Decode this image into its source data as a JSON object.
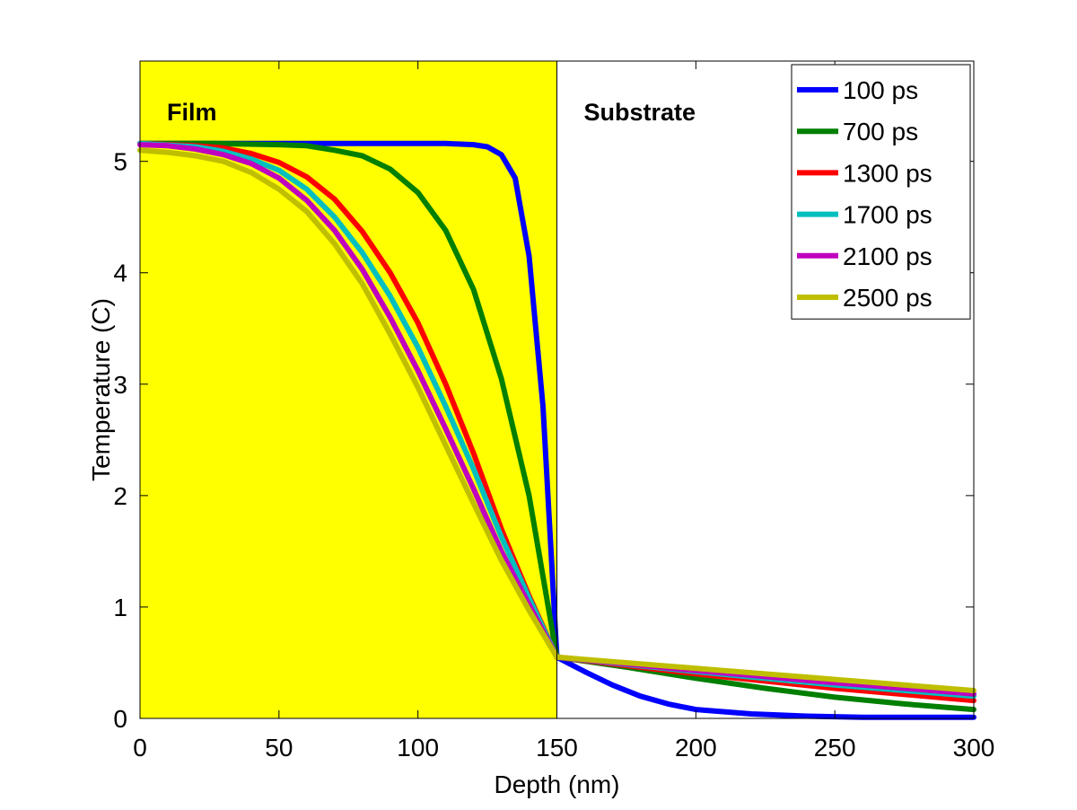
{
  "chart_data": {
    "type": "line",
    "title": "",
    "xlabel": "Depth (nm)",
    "ylabel": "Temperature (C)",
    "xlim": [
      0,
      300
    ],
    "ylim": [
      0,
      5.9
    ],
    "xticks": [
      0,
      50,
      100,
      150,
      200,
      250,
      300
    ],
    "yticks": [
      0,
      1,
      2,
      3,
      4,
      5
    ],
    "grid": false,
    "legend_position": "top-right",
    "regions": [
      {
        "label": "Film",
        "x_range": [
          0,
          150
        ],
        "color": "#ffff00"
      },
      {
        "label": "Substrate",
        "x_range": [
          150,
          300
        ],
        "color": "#ffffff"
      }
    ],
    "series": [
      {
        "name": "100 ps",
        "color": "#0000ff",
        "x": [
          0,
          50,
          100,
          110,
          120,
          125,
          130,
          135,
          140,
          145,
          150,
          160,
          170,
          180,
          190,
          200,
          220,
          240,
          260,
          280,
          300
        ],
        "y": [
          5.16,
          5.16,
          5.16,
          5.16,
          5.15,
          5.13,
          5.06,
          4.85,
          4.15,
          2.8,
          0.55,
          0.42,
          0.3,
          0.2,
          0.13,
          0.08,
          0.04,
          0.02,
          0.01,
          0.01,
          0.01
        ]
      },
      {
        "name": "700 ps",
        "color": "#007f00",
        "x": [
          0,
          25,
          50,
          60,
          70,
          80,
          90,
          100,
          110,
          120,
          130,
          140,
          150,
          175,
          200,
          225,
          250,
          275,
          300
        ],
        "y": [
          5.16,
          5.16,
          5.15,
          5.14,
          5.1,
          5.05,
          4.93,
          4.72,
          4.38,
          3.85,
          3.05,
          2.0,
          0.55,
          0.46,
          0.36,
          0.27,
          0.19,
          0.13,
          0.08
        ]
      },
      {
        "name": "1300 ps",
        "color": "#ff0000",
        "x": [
          0,
          20,
          30,
          40,
          50,
          60,
          70,
          80,
          90,
          100,
          110,
          120,
          130,
          140,
          150,
          200,
          250,
          300
        ],
        "y": [
          5.16,
          5.14,
          5.12,
          5.07,
          4.99,
          4.86,
          4.66,
          4.37,
          4.0,
          3.55,
          3.0,
          2.38,
          1.7,
          1.1,
          0.55,
          0.4,
          0.27,
          0.16
        ]
      },
      {
        "name": "1700 ps",
        "color": "#00bfbf",
        "x": [
          0,
          20,
          30,
          40,
          50,
          60,
          70,
          80,
          90,
          100,
          110,
          120,
          130,
          140,
          150,
          200,
          250,
          300
        ],
        "y": [
          5.16,
          5.13,
          5.09,
          5.02,
          4.92,
          4.75,
          4.5,
          4.18,
          3.79,
          3.33,
          2.8,
          2.24,
          1.63,
          1.08,
          0.55,
          0.42,
          0.3,
          0.2
        ]
      },
      {
        "name": "2100 ps",
        "color": "#bf00bf",
        "x": [
          0,
          10,
          20,
          30,
          40,
          50,
          60,
          70,
          80,
          90,
          100,
          110,
          120,
          130,
          140,
          150,
          200,
          250,
          300
        ],
        "y": [
          5.15,
          5.14,
          5.11,
          5.06,
          4.98,
          4.85,
          4.65,
          4.38,
          4.03,
          3.6,
          3.12,
          2.6,
          2.06,
          1.5,
          1.02,
          0.55,
          0.43,
          0.32,
          0.22
        ]
      },
      {
        "name": "2500 ps",
        "color": "#bfbf00",
        "x": [
          0,
          10,
          20,
          30,
          40,
          50,
          60,
          70,
          80,
          90,
          100,
          110,
          120,
          130,
          140,
          150,
          200,
          250,
          300
        ],
        "y": [
          5.1,
          5.08,
          5.05,
          5.0,
          4.9,
          4.75,
          4.55,
          4.26,
          3.9,
          3.45,
          2.97,
          2.45,
          1.93,
          1.42,
          0.97,
          0.55,
          0.45,
          0.35,
          0.25
        ]
      }
    ]
  }
}
